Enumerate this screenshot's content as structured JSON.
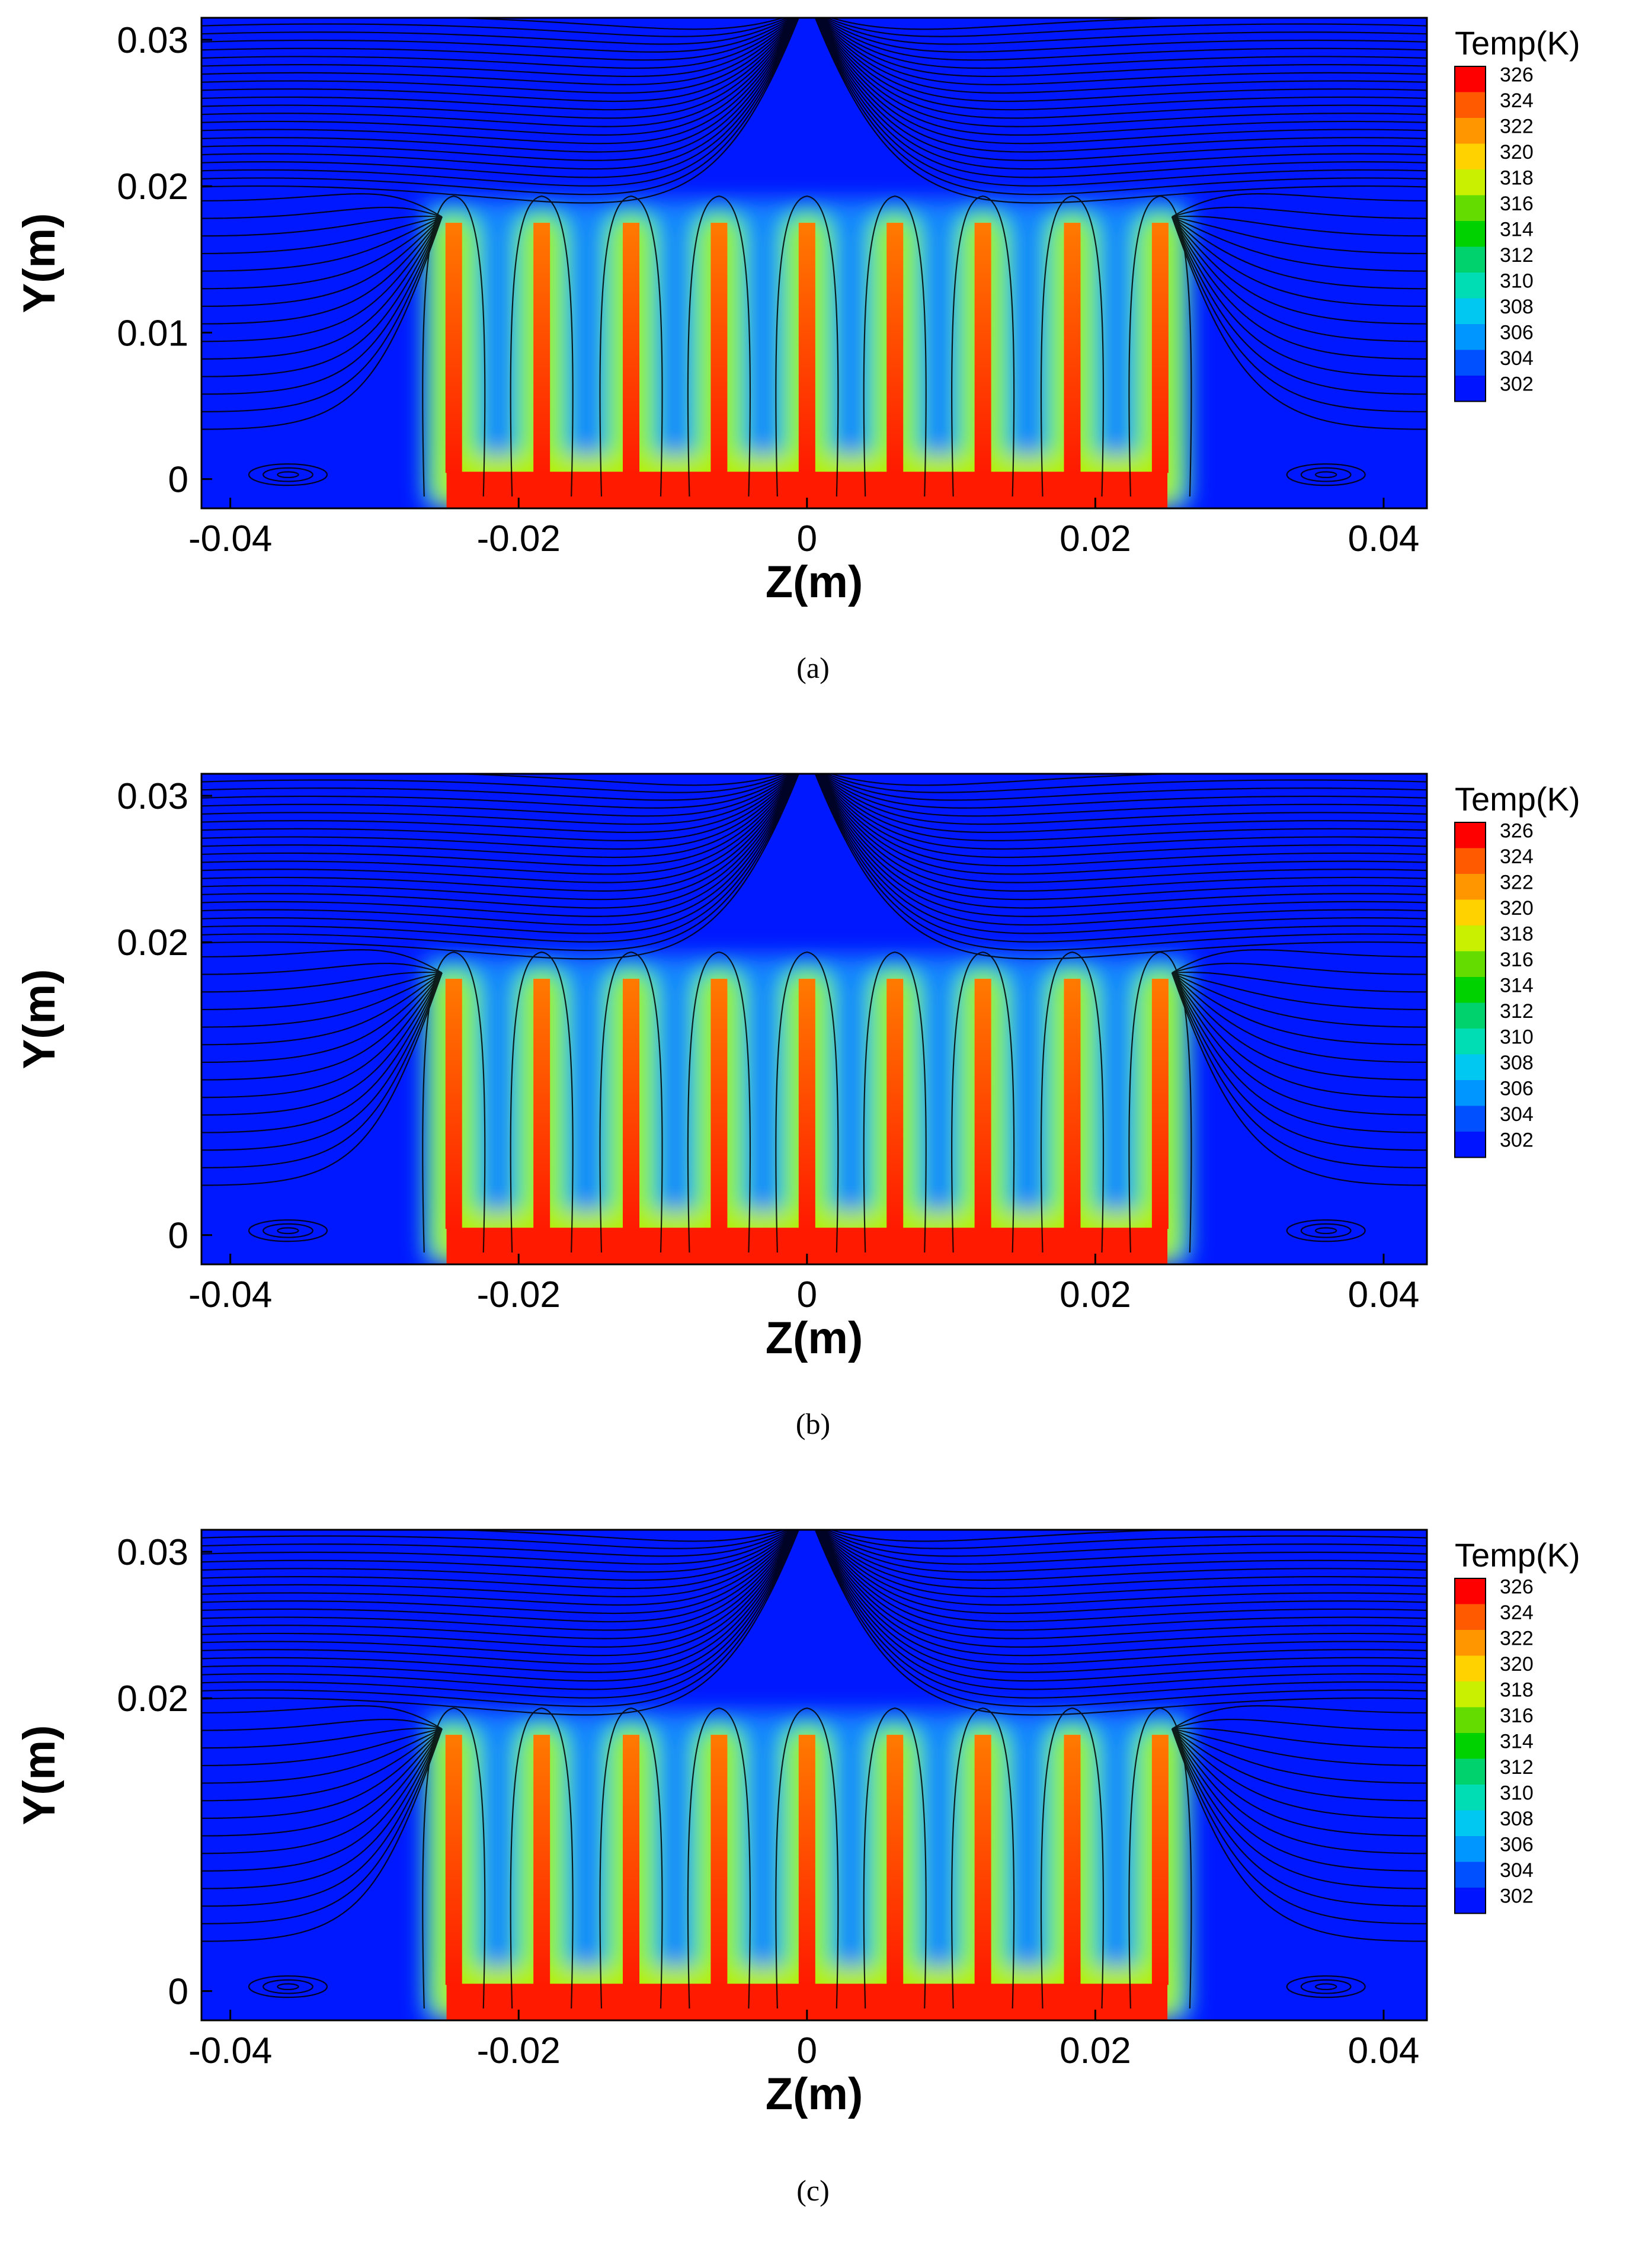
{
  "chart_data": [
    {
      "type": "heatmap",
      "caption": "(a)",
      "xlabel": "Z(m)",
      "ylabel": "Y(m)",
      "xlim": [
        -0.042,
        0.043
      ],
      "ylim": [
        -0.002,
        0.0315
      ],
      "x_ticks": [
        -0.04,
        -0.02,
        0,
        0.02,
        0.04
      ],
      "x_tick_labels": [
        "-0.04",
        "-0.02",
        "0",
        "0.02",
        "0.04"
      ],
      "y_ticks": [
        0,
        0.01,
        0.02,
        0.03
      ],
      "y_tick_labels": [
        "0",
        "0.01",
        "0.02",
        "0.03"
      ],
      "legend_title": "Temp(K)",
      "legend_position": "right",
      "legend_levels": [
        326,
        324,
        322,
        320,
        318,
        316,
        314,
        312,
        310,
        308,
        306,
        304,
        302
      ],
      "legend_labels": [
        "326",
        "324",
        "322",
        "320",
        "318",
        "316",
        "314",
        "312",
        "310",
        "308",
        "306",
        "304",
        "302"
      ],
      "legend_colors": [
        "#ff0000",
        "#ff5a00",
        "#ff9600",
        "#ffd200",
        "#c8f000",
        "#64dc00",
        "#00d200",
        "#00d26e",
        "#00dcb4",
        "#00c8f0",
        "#0096ff",
        "#0050ff",
        "#0014ff"
      ],
      "fin_z": [
        -0.0245,
        -0.0184,
        -0.0122,
        -0.0061,
        0.0,
        0.0061,
        0.0122,
        0.0184,
        0.0245
      ],
      "fin_top_y": 0.0175,
      "base_z": [
        -0.025,
        0.025
      ],
      "background_color": "#0018ff",
      "heat_color": "#ff1a00",
      "streamline_color": "#000000"
    },
    {
      "type": "heatmap",
      "caption": "(b)",
      "xlabel": "Z(m)",
      "ylabel": "Y(m)",
      "xlim": [
        -0.042,
        0.043
      ],
      "ylim": [
        -0.002,
        0.0315
      ],
      "x_ticks": [
        -0.04,
        -0.02,
        0,
        0.02,
        0.04
      ],
      "x_tick_labels": [
        "-0.04",
        "-0.02",
        "0",
        "0.02",
        "0.04"
      ],
      "y_ticks": [
        0,
        0.02,
        0.03
      ],
      "y_tick_labels": [
        "0",
        "0.02",
        "0.03"
      ],
      "legend_title": "Temp(K)",
      "legend_position": "right",
      "legend_levels": [
        326,
        324,
        322,
        320,
        318,
        316,
        314,
        312,
        310,
        308,
        306,
        304,
        302
      ],
      "legend_labels": [
        "326",
        "324",
        "322",
        "320",
        "318",
        "316",
        "314",
        "312",
        "310",
        "308",
        "306",
        "304",
        "302"
      ],
      "legend_colors": [
        "#ff0000",
        "#ff5a00",
        "#ff9600",
        "#ffd200",
        "#c8f000",
        "#64dc00",
        "#00d200",
        "#00d26e",
        "#00dcb4",
        "#00c8f0",
        "#0096ff",
        "#0050ff",
        "#0014ff"
      ],
      "fin_z": [
        -0.0245,
        -0.0184,
        -0.0122,
        -0.0061,
        0.0,
        0.0061,
        0.0122,
        0.0184,
        0.0245
      ],
      "fin_top_y": 0.0175,
      "base_z": [
        -0.025,
        0.025
      ],
      "background_color": "#0018ff",
      "heat_color": "#ff1a00",
      "streamline_color": "#000000"
    },
    {
      "type": "heatmap",
      "caption": "(c)",
      "xlabel": "Z(m)",
      "ylabel": "Y(m)",
      "xlim": [
        -0.042,
        0.043
      ],
      "ylim": [
        -0.002,
        0.0315
      ],
      "x_ticks": [
        -0.04,
        -0.02,
        0,
        0.02,
        0.04
      ],
      "x_tick_labels": [
        "-0.04",
        "-0.02",
        "0",
        "0.02",
        "0.04"
      ],
      "y_ticks": [
        0,
        0.02,
        0.03
      ],
      "y_tick_labels": [
        "0",
        "0.02",
        "0.03"
      ],
      "legend_title": "Temp(K)",
      "legend_position": "right",
      "legend_levels": [
        326,
        324,
        322,
        320,
        318,
        316,
        314,
        312,
        310,
        308,
        306,
        304,
        302
      ],
      "legend_labels": [
        "326",
        "324",
        "322",
        "320",
        "318",
        "316",
        "314",
        "312",
        "310",
        "308",
        "306",
        "304",
        "302"
      ],
      "legend_colors": [
        "#ff0000",
        "#ff5a00",
        "#ff9600",
        "#ffd200",
        "#c8f000",
        "#64dc00",
        "#00d200",
        "#00d26e",
        "#00dcb4",
        "#00c8f0",
        "#0096ff",
        "#0050ff",
        "#0014ff"
      ],
      "fin_z": [
        -0.0245,
        -0.0184,
        -0.0122,
        -0.0061,
        0.0,
        0.0061,
        0.0122,
        0.0184,
        0.0245
      ],
      "fin_top_y": 0.0175,
      "base_z": [
        -0.025,
        0.025
      ],
      "background_color": "#0018ff",
      "heat_color": "#ff1a00",
      "streamline_color": "#000000"
    }
  ]
}
